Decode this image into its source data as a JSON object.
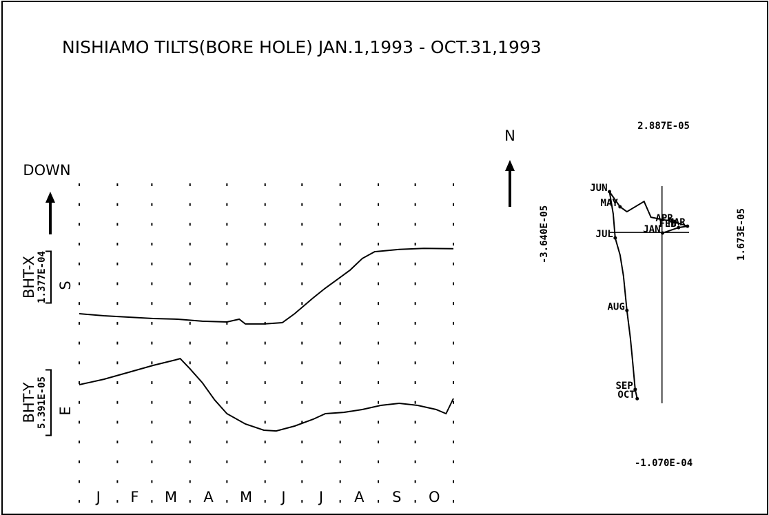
{
  "chart_data": [
    {
      "type": "line",
      "title": "NISHIAMO TILTS(BORE HOLE)  JAN.1,1993 - OCT.31,1993",
      "direction_label": "DOWN",
      "categories": [
        "J",
        "F",
        "M",
        "A",
        "M",
        "J",
        "J",
        "A",
        "S",
        "O"
      ],
      "xlim": [
        0,
        304
      ],
      "xticks": [
        0,
        31,
        59,
        90,
        120,
        151,
        181,
        212,
        243,
        273,
        304
      ],
      "ylim": [
        -0.000505,
        0.000358
      ],
      "y2lim": [
        -9.75e-05,
        0.000169
      ],
      "series": [
        {
          "name": "BHT-X",
          "color": "#000000",
          "direction": "S",
          "scale": {
            "value": 0.0001377,
            "label": "1.377E-04"
          },
          "x": [
            0,
            20,
            40,
            60,
            80,
            100,
            120,
            130,
            135,
            150,
            165,
            175,
            190,
            200,
            210,
            220,
            230,
            240,
            260,
            280,
            304
          ],
          "values": [
            0,
            -5.5e-06,
            -9.2e-06,
            -1.29e-05,
            -1.47e-05,
            -2e-05,
            -2.2e-05,
            -1.47e-05,
            -2.75e-05,
            -2.75e-05,
            -2.4e-05,
            0,
            4.2e-05,
            6.8e-05,
            9.2e-05,
            0.000116,
            0.000147,
            0.000165,
            0.000171,
            0.000174,
            0.000173
          ]
        },
        {
          "name": "BHT-Y",
          "color": "#000000",
          "direction": "E",
          "axis": "y2",
          "scale": {
            "value": 5.391e-05,
            "label": "5.391E-05"
          },
          "x": [
            0,
            20,
            40,
            60,
            78,
            82,
            90,
            100,
            110,
            120,
            135,
            150,
            160,
            175,
            190,
            200,
            215,
            230,
            245,
            260,
            275,
            290,
            298,
            304
          ],
          "values": [
            0,
            4.5e-06,
            1.02e-05,
            1.59e-05,
            2.04e-05,
            2.15e-05,
            1.3e-05,
            1.7e-06,
            -1.25e-05,
            -2.38e-05,
            -3.23e-05,
            -3.74e-05,
            -3.8e-05,
            -3.4e-05,
            -2.84e-05,
            -2.38e-05,
            -2.27e-05,
            -2.04e-05,
            -1.7e-05,
            -1.53e-05,
            -1.7e-05,
            -2.04e-05,
            -2.38e-05,
            -1.13e-05
          ]
        }
      ]
    },
    {
      "type": "line",
      "north_label": "N",
      "xlim": [
        {
          "value": -3.64e-05,
          "label": "-3.640E-05"
        },
        {
          "value": 1.673e-05,
          "label": "1.673E-05"
        }
      ],
      "ylim": [
        {
          "value": -0.000107,
          "label": "-1.070E-04"
        },
        {
          "value": 2.887e-05,
          "label": "2.887E-05"
        }
      ],
      "color": "#000000",
      "x": [
        2e-07,
        5.8e-06,
        8.94e-06,
        4.59e-06,
        -2.4e-07,
        -3.86e-06,
        -6.28e-06,
        -7.49e-06,
        -1.23e-05,
        -1.47e-05,
        -1.64e-05,
        -1.84e-05,
        -1.71e-05,
        -1.64e-05,
        -1.47e-05,
        -1.35e-05,
        -1.23e-05,
        -1.11e-05,
        -1.04e-05,
        -9.4e-06,
        -8.7e-06
      ],
      "y": [
        -3e-07,
        2.32e-06,
        2.98e-06,
        4.97e-06,
        6.3e-06,
        7.29e-06,
        1.49e-05,
        1.39e-05,
        9.94e-06,
        1.23e-05,
        1.56e-05,
        1.96e-05,
        8.95e-06,
        -2.65e-06,
        -1.09e-05,
        -2.09e-05,
        -3.75e-05,
        -5.07e-05,
        -6.06e-05,
        -7.55e-05,
        -7.99e-05
      ],
      "point_labels": [
        "JAN",
        "FEB",
        "MAR",
        "APR",
        null,
        null,
        null,
        null,
        null,
        "MAY",
        null,
        "JUN",
        null,
        "JUL",
        null,
        null,
        "AUG",
        null,
        null,
        "SEP",
        "OCT"
      ]
    }
  ]
}
